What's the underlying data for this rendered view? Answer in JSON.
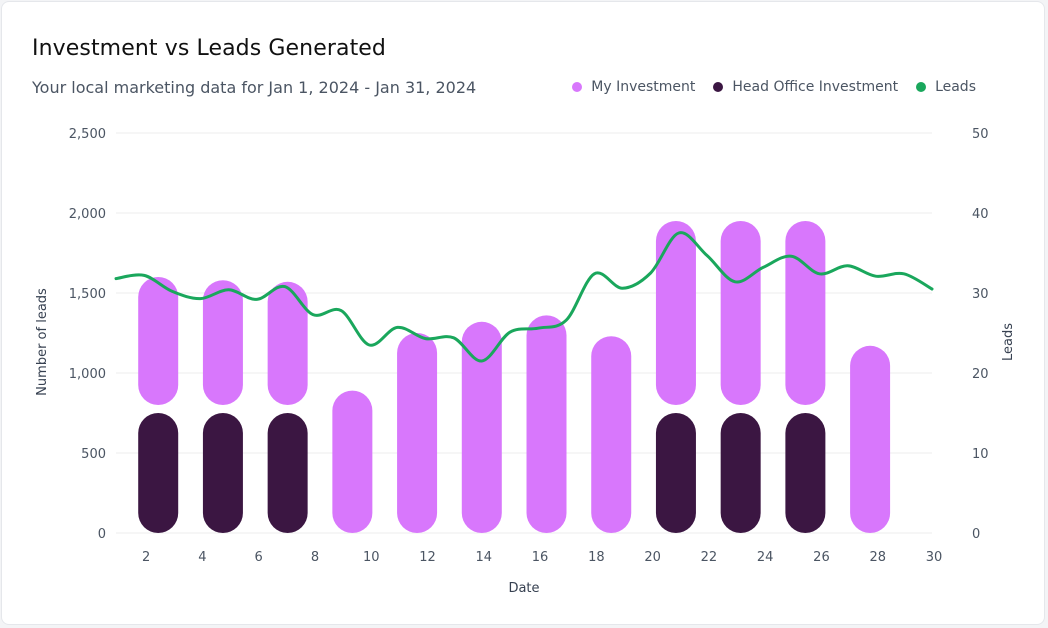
{
  "header": {
    "title": "Investment vs Leads Generated",
    "subtitle": "Your local marketing data for Jan 1, 2024 - Jan 31, 2024"
  },
  "legend": [
    {
      "label": "My Investment",
      "color": "#d877fc"
    },
    {
      "label": "Head Office Investment",
      "color": "#3b1642"
    },
    {
      "label": "Leads",
      "color": "#1aa75c"
    }
  ],
  "chart_data": {
    "type": "bar",
    "xlabel": "Date",
    "ylabel": "Number of leads",
    "y2label": "Leads",
    "xlim": [
      1,
      30
    ],
    "ylim": [
      0,
      2500
    ],
    "y2lim": [
      0,
      50
    ],
    "x_ticks": [
      2,
      4,
      6,
      8,
      10,
      12,
      14,
      16,
      18,
      20,
      22,
      24,
      26,
      28,
      30
    ],
    "y_ticks": [
      0,
      500,
      1000,
      1500,
      2000,
      2500
    ],
    "y2_ticks": [
      0,
      10,
      20,
      30,
      40,
      50
    ],
    "grid": true,
    "legend_position": "top-right",
    "series": [
      {
        "name": "My Investment",
        "x": [
          2.5,
          4.8,
          7.1,
          9.4,
          11.7,
          14.0,
          16.3,
          18.6,
          20.9,
          23.2,
          25.5,
          27.8
        ],
        "values": [
          800,
          780,
          770,
          890,
          1250,
          1320,
          1360,
          1230,
          1150,
          1150,
          1150,
          1170
        ],
        "base": [
          800,
          800,
          800,
          0,
          0,
          0,
          0,
          0,
          800,
          800,
          800,
          0
        ]
      },
      {
        "name": "Head Office Investment",
        "x": [
          2.5,
          4.8,
          7.1,
          20.9,
          23.2,
          25.5
        ],
        "values": [
          750,
          750,
          750,
          750,
          750,
          750
        ]
      },
      {
        "name": "Leads",
        "type": "line",
        "axis": "right",
        "x": [
          1,
          2,
          3,
          4,
          5,
          6,
          7,
          8,
          9,
          10,
          11,
          12,
          13,
          14,
          15,
          16,
          17,
          18,
          19,
          20,
          21,
          22,
          23,
          24,
          25,
          26,
          27,
          28,
          29,
          30
        ],
        "values": [
          31.8,
          32.2,
          30.2,
          29.3,
          30.4,
          29.2,
          30.8,
          27.3,
          27.8,
          23.5,
          25.7,
          24.3,
          24.4,
          21.5,
          25.1,
          25.6,
          26.6,
          32.4,
          30.6,
          32.5,
          37.5,
          34.7,
          31.4,
          33.2,
          34.6,
          32.4,
          33.4,
          32.1,
          32.4,
          30.5
        ]
      }
    ]
  }
}
